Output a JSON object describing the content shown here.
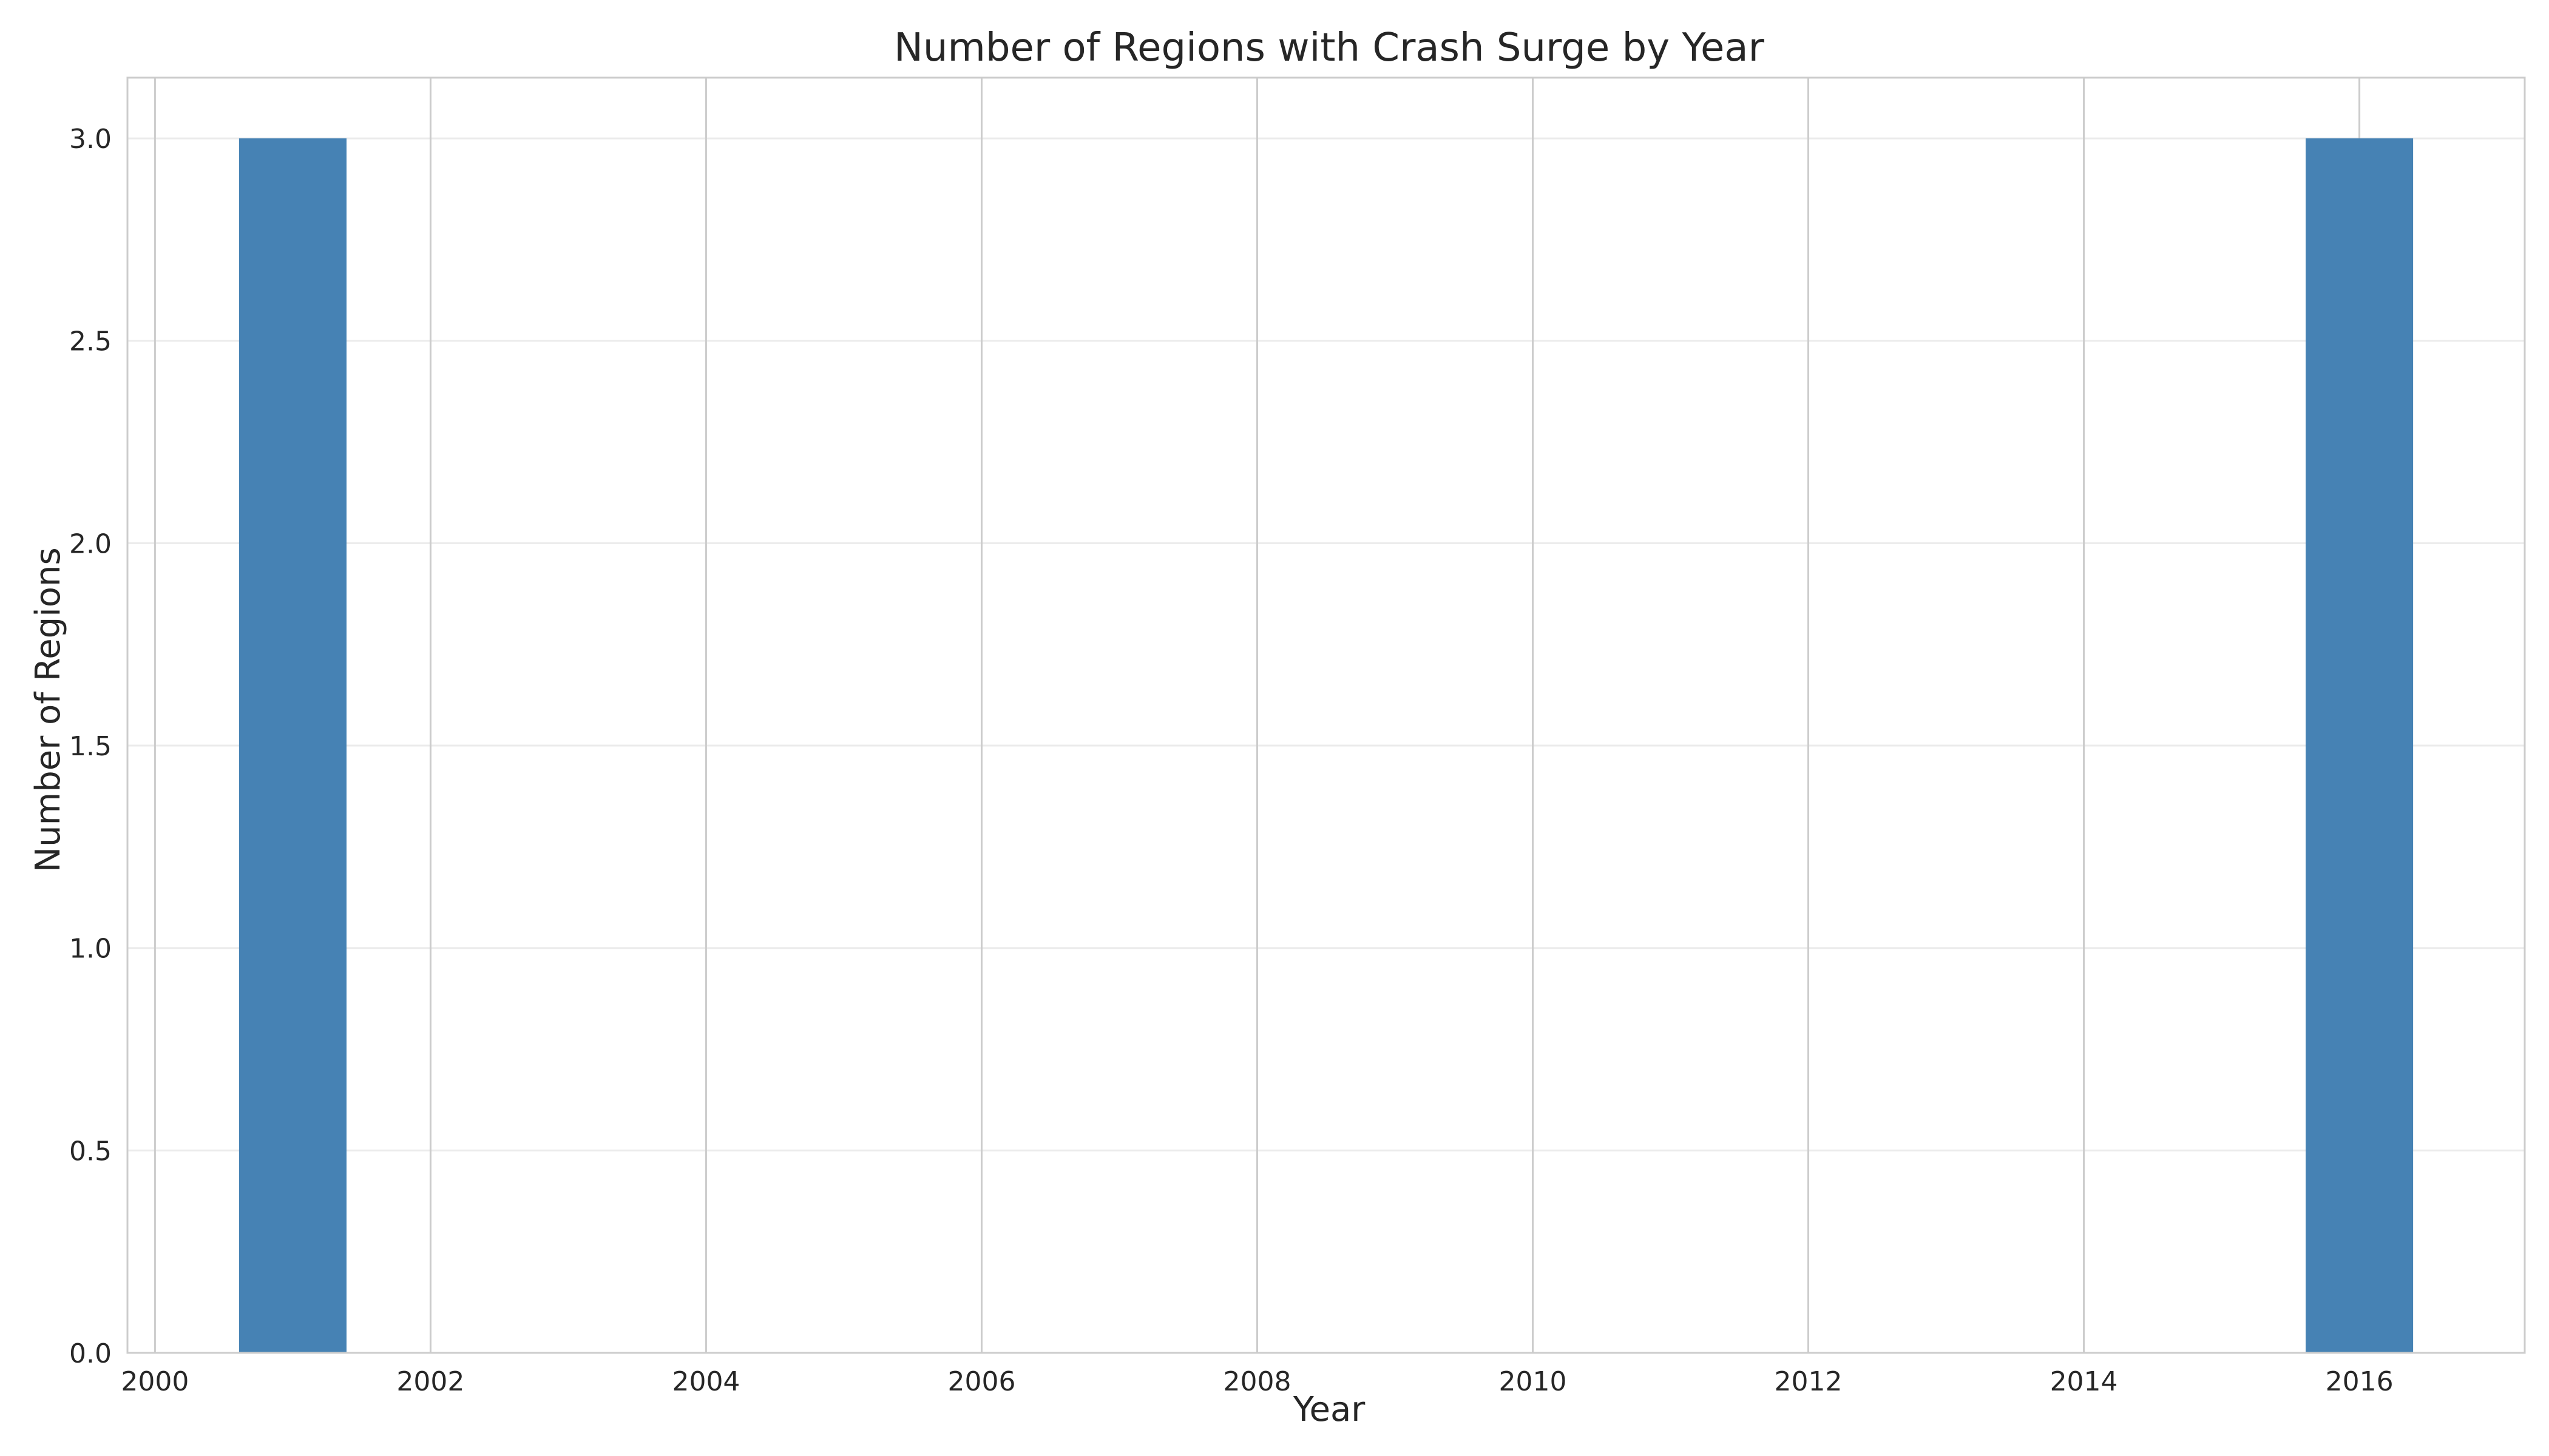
{
  "chart_data": {
    "type": "bar",
    "title": "Number of Regions with Crash Surge by Year",
    "xlabel": "Year",
    "ylabel": "Number of Regions",
    "x": [
      2001,
      2016
    ],
    "values": [
      3,
      3
    ],
    "bar_width_years": 0.78,
    "xlim": [
      1999.8,
      2017.2
    ],
    "ylim": [
      0,
      3.15
    ],
    "xticks": [
      2000,
      2002,
      2004,
      2006,
      2008,
      2010,
      2012,
      2014,
      2016
    ],
    "xtick_labels": [
      "2000",
      "2002",
      "2004",
      "2006",
      "2008",
      "2010",
      "2012",
      "2014",
      "2016"
    ],
    "yticks": [
      0,
      0.5,
      1,
      1.5,
      2,
      2.5,
      3
    ],
    "ytick_labels": [
      "0.0",
      "0.5",
      "1.0",
      "1.5",
      "2.0",
      "2.5",
      "3.0"
    ],
    "bar_color": "#4682b4",
    "grid": true,
    "legend": "none"
  }
}
